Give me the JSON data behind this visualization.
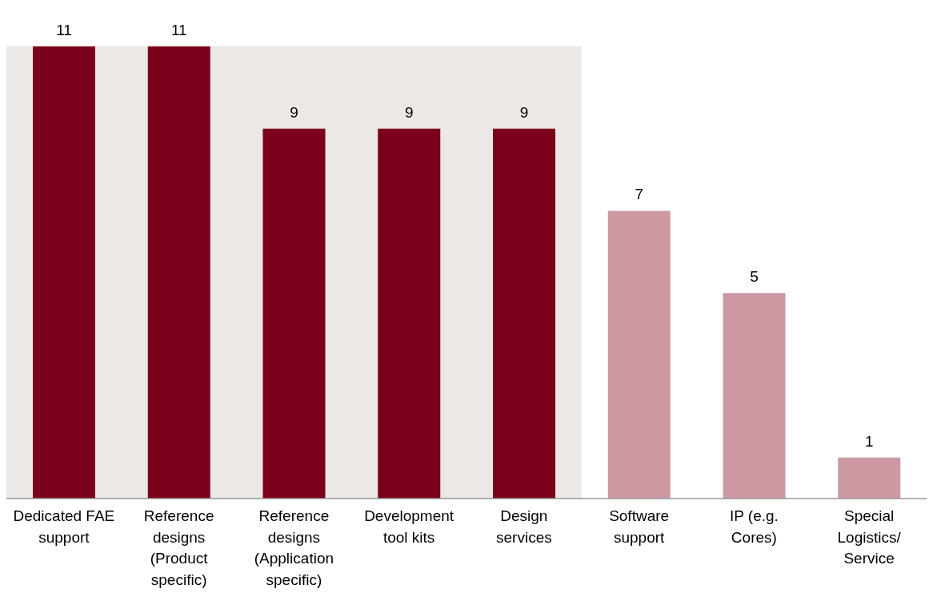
{
  "chart_data": {
    "type": "bar",
    "categories": [
      "Dedicated FAE support",
      "Reference designs (Product specific)",
      "Reference designs (Application specific)",
      "Development tool kits",
      "Design services",
      "Software support",
      "IP (e.g. Cores)",
      "Special Logistics/ Service"
    ],
    "values": [
      11,
      11,
      9,
      9,
      9,
      7,
      5,
      1
    ],
    "colors": [
      "#7b0019",
      "#7b0019",
      "#7b0019",
      "#7b0019",
      "#7b0019",
      "#cc99a3",
      "#cc99a3",
      "#cc99a3"
    ],
    "data_labels": true,
    "grid": false,
    "legend": false,
    "bands": [
      {
        "axis": "x",
        "from": "Dedicated FAE support",
        "to": "Design services",
        "color": "#ebe8e6"
      }
    ]
  }
}
